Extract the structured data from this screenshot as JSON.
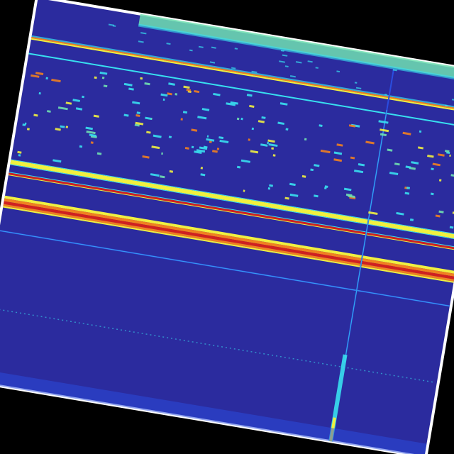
{
  "image": {
    "kind": "rotated spectrogram heatmap",
    "colormap": "jet",
    "colors": {
      "background": "#000000",
      "frame_border": "#ffffff",
      "field": "#2b2b9e",
      "low": "#2a4de0",
      "cyan": "#38e0f0",
      "yellow": "#f0f040",
      "orange": "#f08020",
      "red": "#d02020",
      "teal": "#70e0b0"
    }
  }
}
